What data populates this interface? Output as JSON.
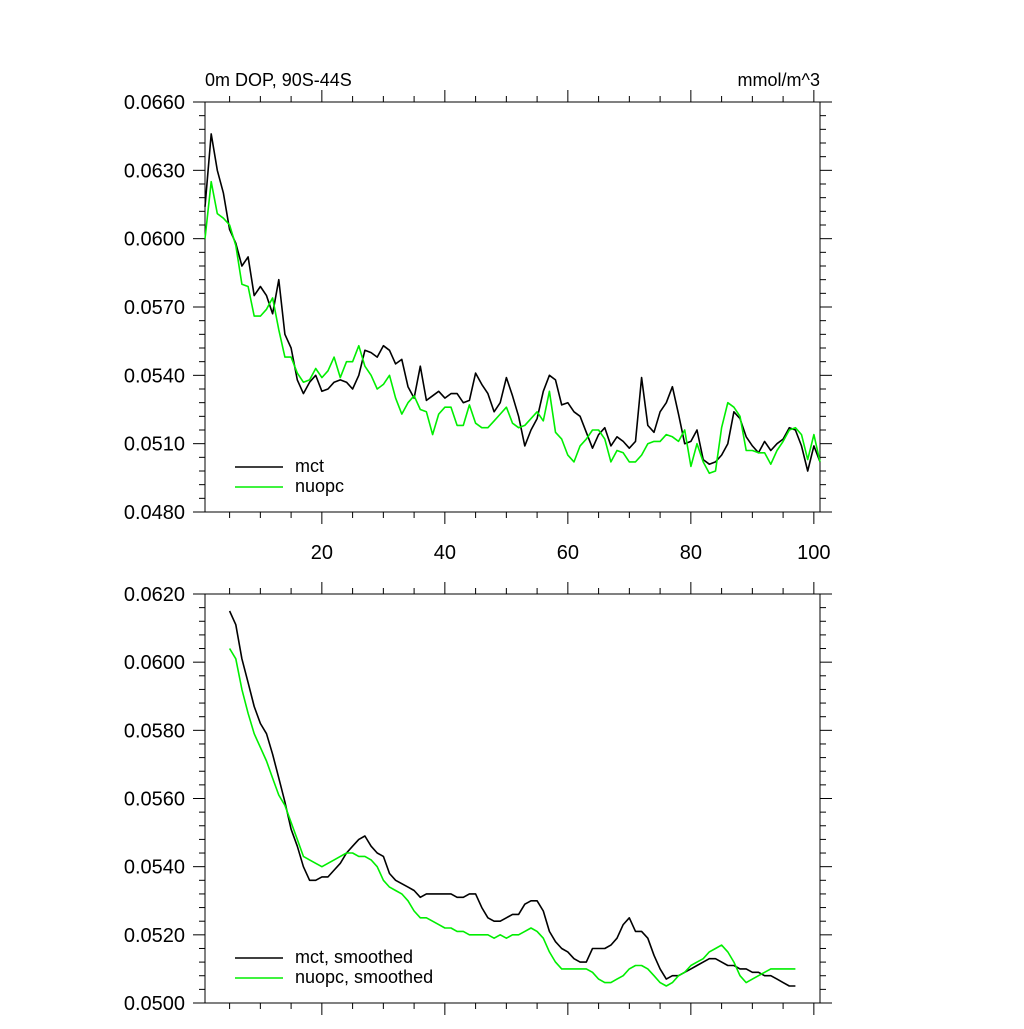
{
  "chart_data": [
    {
      "type": "line",
      "title_left": "0m DOP, 90S-44S",
      "title_right": "mmol/m^3",
      "xlabel": "",
      "ylabel": "",
      "xlim": [
        1,
        101
      ],
      "ylim": [
        0.048,
        0.066
      ],
      "x_ticks": [
        20,
        40,
        60,
        80,
        100
      ],
      "x_tick_labels": [
        "20",
        "40",
        "60",
        "80",
        "100"
      ],
      "y_ticks": [
        0.048,
        0.051,
        0.054,
        0.057,
        0.06,
        0.063,
        0.066
      ],
      "y_tick_labels": [
        "0.0480",
        "0.0510",
        "0.0540",
        "0.0570",
        "0.0600",
        "0.0630",
        "0.0660"
      ],
      "legend": {
        "position": "bottom-left"
      },
      "x": [
        1,
        2,
        3,
        4,
        5,
        6,
        7,
        8,
        9,
        10,
        11,
        12,
        13,
        14,
        15,
        16,
        17,
        18,
        19,
        20,
        21,
        22,
        23,
        24,
        25,
        26,
        27,
        28,
        29,
        30,
        31,
        32,
        33,
        34,
        35,
        36,
        37,
        38,
        39,
        40,
        41,
        42,
        43,
        44,
        45,
        46,
        47,
        48,
        49,
        50,
        51,
        52,
        53,
        54,
        55,
        56,
        57,
        58,
        59,
        60,
        61,
        62,
        63,
        64,
        65,
        66,
        67,
        68,
        69,
        70,
        71,
        72,
        73,
        74,
        75,
        76,
        77,
        78,
        79,
        80,
        81,
        82,
        83,
        84,
        85,
        86,
        87,
        88,
        89,
        90,
        91,
        92,
        93,
        94,
        95,
        96,
        97,
        98,
        99,
        100,
        101
      ],
      "series": [
        {
          "name": "mct",
          "color": "#000000",
          "values": [
            0.0614,
            0.0646,
            0.063,
            0.062,
            0.0604,
            0.0598,
            0.0588,
            0.0592,
            0.0575,
            0.0579,
            0.0575,
            0.0567,
            0.0582,
            0.0558,
            0.0552,
            0.0538,
            0.0532,
            0.0537,
            0.054,
            0.0533,
            0.0534,
            0.0537,
            0.0538,
            0.0537,
            0.0534,
            0.054,
            0.0551,
            0.055,
            0.0548,
            0.0553,
            0.0551,
            0.0545,
            0.0547,
            0.0535,
            0.053,
            0.0544,
            0.0529,
            0.0531,
            0.0533,
            0.053,
            0.0532,
            0.0532,
            0.0528,
            0.0529,
            0.0541,
            0.0536,
            0.0532,
            0.0524,
            0.0528,
            0.0539,
            0.0531,
            0.0522,
            0.0509,
            0.0516,
            0.0521,
            0.0533,
            0.054,
            0.0538,
            0.0527,
            0.0528,
            0.0524,
            0.0522,
            0.0515,
            0.0508,
            0.0514,
            0.0517,
            0.0509,
            0.0513,
            0.0511,
            0.0508,
            0.0511,
            0.0539,
            0.0518,
            0.0515,
            0.0524,
            0.0528,
            0.0535,
            0.0523,
            0.051,
            0.0511,
            0.0516,
            0.0503,
            0.0501,
            0.0502,
            0.0505,
            0.051,
            0.0524,
            0.0521,
            0.0513,
            0.0509,
            0.0506,
            0.0511,
            0.0507,
            0.051,
            0.0512,
            0.0517,
            0.0516,
            0.0509,
            0.0498,
            0.0509,
            0.0502
          ]
        },
        {
          "name": "nuopc",
          "color": "#00ee00",
          "values": [
            0.06,
            0.0625,
            0.0611,
            0.0609,
            0.0606,
            0.0597,
            0.058,
            0.0579,
            0.0566,
            0.0566,
            0.0569,
            0.0574,
            0.056,
            0.0548,
            0.0548,
            0.0541,
            0.0537,
            0.0538,
            0.0543,
            0.0539,
            0.0542,
            0.0548,
            0.0539,
            0.0546,
            0.0546,
            0.0553,
            0.0544,
            0.054,
            0.0534,
            0.0536,
            0.054,
            0.053,
            0.0523,
            0.0528,
            0.0531,
            0.0525,
            0.0524,
            0.0514,
            0.0523,
            0.0526,
            0.0526,
            0.0518,
            0.0518,
            0.0527,
            0.0519,
            0.0517,
            0.0517,
            0.052,
            0.0523,
            0.0526,
            0.0519,
            0.0517,
            0.0518,
            0.0521,
            0.0524,
            0.052,
            0.0533,
            0.0515,
            0.0512,
            0.0505,
            0.0502,
            0.0509,
            0.0512,
            0.0516,
            0.0516,
            0.0512,
            0.0502,
            0.0507,
            0.0506,
            0.0502,
            0.0502,
            0.0505,
            0.051,
            0.0511,
            0.0511,
            0.0514,
            0.0513,
            0.0511,
            0.0516,
            0.05,
            0.051,
            0.0502,
            0.0497,
            0.0498,
            0.0517,
            0.0528,
            0.0526,
            0.0522,
            0.0507,
            0.0507,
            0.0506,
            0.0506,
            0.0501,
            0.0507,
            0.0511,
            0.0516,
            0.0517,
            0.0514,
            0.0503,
            0.0514,
            0.0502
          ]
        }
      ]
    },
    {
      "type": "line",
      "title_left": "",
      "title_right": "",
      "xlabel": "",
      "ylabel": "",
      "xlim": [
        1,
        101
      ],
      "ylim": [
        0.05,
        0.062
      ],
      "x_ticks": [
        20,
        40,
        60,
        80,
        100
      ],
      "x_tick_labels": [],
      "y_ticks": [
        0.05,
        0.052,
        0.054,
        0.056,
        0.058,
        0.06,
        0.062
      ],
      "y_tick_labels": [
        "0.0500",
        "0.0520",
        "0.0540",
        "0.0560",
        "0.0580",
        "0.0600",
        "0.0620"
      ],
      "legend": {
        "position": "bottom-left"
      },
      "x": [
        5,
        6,
        7,
        8,
        9,
        10,
        11,
        12,
        13,
        14,
        15,
        16,
        17,
        18,
        19,
        20,
        21,
        22,
        23,
        24,
        25,
        26,
        27,
        28,
        29,
        30,
        31,
        32,
        33,
        34,
        35,
        36,
        37,
        38,
        39,
        40,
        41,
        42,
        43,
        44,
        45,
        46,
        47,
        48,
        49,
        50,
        51,
        52,
        53,
        54,
        55,
        56,
        57,
        58,
        59,
        60,
        61,
        62,
        63,
        64,
        65,
        66,
        67,
        68,
        69,
        70,
        71,
        72,
        73,
        74,
        75,
        76,
        77,
        78,
        79,
        80,
        81,
        82,
        83,
        84,
        85,
        86,
        87,
        88,
        89,
        90,
        91,
        92,
        93,
        94,
        95,
        96,
        97
      ],
      "series": [
        {
          "name": "mct, smoothed",
          "color": "#000000",
          "values": [
            0.0615,
            0.0611,
            0.0601,
            0.0594,
            0.0587,
            0.0582,
            0.0579,
            0.0573,
            0.0566,
            0.0559,
            0.0551,
            0.0546,
            0.054,
            0.0536,
            0.0536,
            0.0537,
            0.0537,
            0.0539,
            0.0541,
            0.0544,
            0.0546,
            0.0548,
            0.0549,
            0.0546,
            0.0544,
            0.0543,
            0.0538,
            0.0536,
            0.0535,
            0.0534,
            0.0533,
            0.0531,
            0.0532,
            0.0532,
            0.0532,
            0.0532,
            0.0532,
            0.0531,
            0.0531,
            0.0532,
            0.0532,
            0.0528,
            0.0525,
            0.0524,
            0.0524,
            0.0525,
            0.0526,
            0.0526,
            0.0529,
            0.053,
            0.053,
            0.0527,
            0.0521,
            0.0518,
            0.0516,
            0.0515,
            0.0513,
            0.0512,
            0.0512,
            0.0516,
            0.0516,
            0.0516,
            0.0517,
            0.0519,
            0.0523,
            0.0525,
            0.0521,
            0.0521,
            0.0519,
            0.0514,
            0.051,
            0.0507,
            0.0508,
            0.0508,
            0.0509,
            0.051,
            0.0511,
            0.0512,
            0.0513,
            0.0513,
            0.0512,
            0.0511,
            0.0511,
            0.051,
            0.051,
            0.0509,
            0.0509,
            0.0508,
            0.0508,
            0.0507,
            0.0506,
            0.0505,
            0.0505
          ]
        },
        {
          "name": "nuopc, smoothed",
          "color": "#00ee00",
          "values": [
            0.0604,
            0.0601,
            0.0592,
            0.0585,
            0.0579,
            0.0575,
            0.0571,
            0.0566,
            0.0561,
            0.0558,
            0.0553,
            0.0548,
            0.0543,
            0.0542,
            0.0541,
            0.054,
            0.0541,
            0.0542,
            0.0543,
            0.0544,
            0.0544,
            0.0543,
            0.0543,
            0.0542,
            0.054,
            0.0536,
            0.0534,
            0.0533,
            0.0532,
            0.053,
            0.0527,
            0.0525,
            0.0525,
            0.0524,
            0.0523,
            0.0522,
            0.0522,
            0.0521,
            0.0521,
            0.052,
            0.052,
            0.052,
            0.052,
            0.0519,
            0.052,
            0.0519,
            0.052,
            0.052,
            0.0521,
            0.0522,
            0.0521,
            0.0519,
            0.0515,
            0.0512,
            0.051,
            0.051,
            0.051,
            0.051,
            0.051,
            0.0509,
            0.0507,
            0.0506,
            0.0506,
            0.0507,
            0.0508,
            0.051,
            0.0511,
            0.0511,
            0.051,
            0.0508,
            0.0506,
            0.0505,
            0.0506,
            0.0508,
            0.0509,
            0.0511,
            0.0512,
            0.0513,
            0.0515,
            0.0516,
            0.0517,
            0.0515,
            0.0512,
            0.0508,
            0.0506,
            0.0507,
            0.0508,
            0.0509,
            0.051,
            0.051,
            0.051,
            0.051,
            0.051
          ]
        }
      ]
    }
  ]
}
